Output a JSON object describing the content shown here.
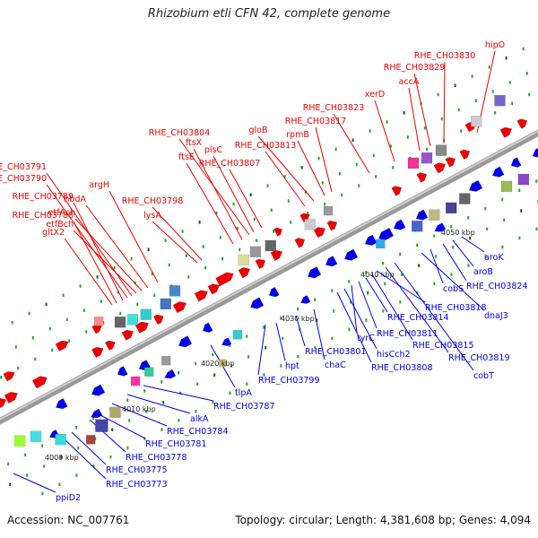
{
  "header": {
    "title": "Rhizobium etli CFN 42, complete genome"
  },
  "footer": {
    "accession_label": "Accession:",
    "accession": "NC_007761",
    "topology_label": "Topology:",
    "topology": "circular",
    "length_label": "Length:",
    "length": "4,381,608 bp",
    "genes_label": "Genes:",
    "genes": "4,094"
  },
  "colors": {
    "forward": "#ee0000",
    "reverse": "#0000ee",
    "backbone": "#999999"
  },
  "kbp_labels": [
    "4000 kbp",
    "4010 kbp",
    "4020 kbp",
    "4030 kbp",
    "4040 kbp",
    "4050 kbp"
  ],
  "forward_labels": [
    "gltX2",
    "RHE_CH03788",
    "RHE_CH03789",
    "RHE_CH03790",
    "RHE_CH03791",
    "etfBch",
    "etfAch",
    "hbdA",
    "argH",
    "lysA",
    "RHE_CH03798",
    "ftsE",
    "ftsX",
    "RHE_CH03804",
    "plsC",
    "RHE_CH03807",
    "RHE_CH03813",
    "gloB",
    "RHE_CH03817",
    "rpmB",
    "RHE_CH03823",
    "xerD",
    "accA",
    "RHE_CH03829",
    "RHE_CH03830",
    "hipO"
  ],
  "reverse_labels": [
    "ppiD2",
    "RHE_CH03773",
    "RHE_CH03775",
    "RHE_CH03778",
    "RHE_CH03781",
    "RHE_CH03784",
    "alkA",
    "RHE_CH03787",
    "tlpA",
    "RHE_CH03799",
    "hpt",
    "RHE_CH03801",
    "chaC",
    "RHE_CH03808",
    "hisCch2",
    "tyrC",
    "RHE_CH03811",
    "RHE_CH03814",
    "RHE_CH03815",
    "RHE_CH03818",
    "RHE_CH03819",
    "cobT",
    "dnaJ3",
    "cobS",
    "RHE_CH03824",
    "aroB",
    "aroK"
  ]
}
